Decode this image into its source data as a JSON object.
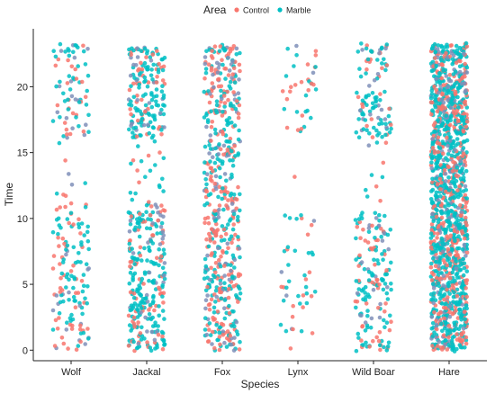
{
  "chart_data": {
    "type": "scatter",
    "subtype": "jitter-strip",
    "title": "",
    "xlabel": "Species",
    "ylabel": "Time",
    "categories": [
      "Wolf",
      "Jackal",
      "Fox",
      "Lynx",
      "Wild Boar",
      "Hare"
    ],
    "ylim": [
      -0.8,
      24.4
    ],
    "yticks": [
      0,
      5,
      10,
      15,
      20
    ],
    "y_min": 0,
    "y_max": 23.2,
    "grid": false,
    "legend": {
      "title": "Area",
      "placement": "top",
      "entries": [
        {
          "name": "Control",
          "color": "#F8766D"
        },
        {
          "name": "Marble",
          "color": "#00BFC4"
        }
      ]
    },
    "point_color": "#7F8FB8",
    "series": [
      {
        "category": "Wolf",
        "control_density": 0.55,
        "bands": [
          {
            "from": 0,
            "to": 11,
            "weight": 1.0
          },
          {
            "from": 11,
            "to": 15.5,
            "weight": 0.15
          },
          {
            "from": 15.5,
            "to": 23.2,
            "weight": 0.8
          }
        ]
      },
      {
        "category": "Jackal",
        "control_density": 0.35,
        "bands": [
          {
            "from": 0,
            "to": 10.5,
            "weight": 2.2
          },
          {
            "from": 10.5,
            "to": 16,
            "weight": 0.45
          },
          {
            "from": 16,
            "to": 23.2,
            "weight": 2.0
          }
        ]
      },
      {
        "category": "Fox",
        "control_density": 0.6,
        "bands": [
          {
            "from": 0,
            "to": 23.2,
            "weight": 2.0
          }
        ]
      },
      {
        "category": "Lynx",
        "control_density": 0.45,
        "bands": [
          {
            "from": 0,
            "to": 10.5,
            "weight": 0.35
          },
          {
            "from": 10.5,
            "to": 16.5,
            "weight": 0.02
          },
          {
            "from": 16.5,
            "to": 23.2,
            "weight": 0.45
          }
        ]
      },
      {
        "category": "Wild Boar",
        "control_density": 0.45,
        "bands": [
          {
            "from": 0,
            "to": 10.5,
            "weight": 1.3
          },
          {
            "from": 10.5,
            "to": 16,
            "weight": 0.15
          },
          {
            "from": 16,
            "to": 23.2,
            "weight": 1.2
          }
        ]
      },
      {
        "category": "Hare",
        "control_density": 0.4,
        "bands": [
          {
            "from": 0,
            "to": 23.2,
            "weight": 5.0
          }
        ]
      }
    ]
  }
}
